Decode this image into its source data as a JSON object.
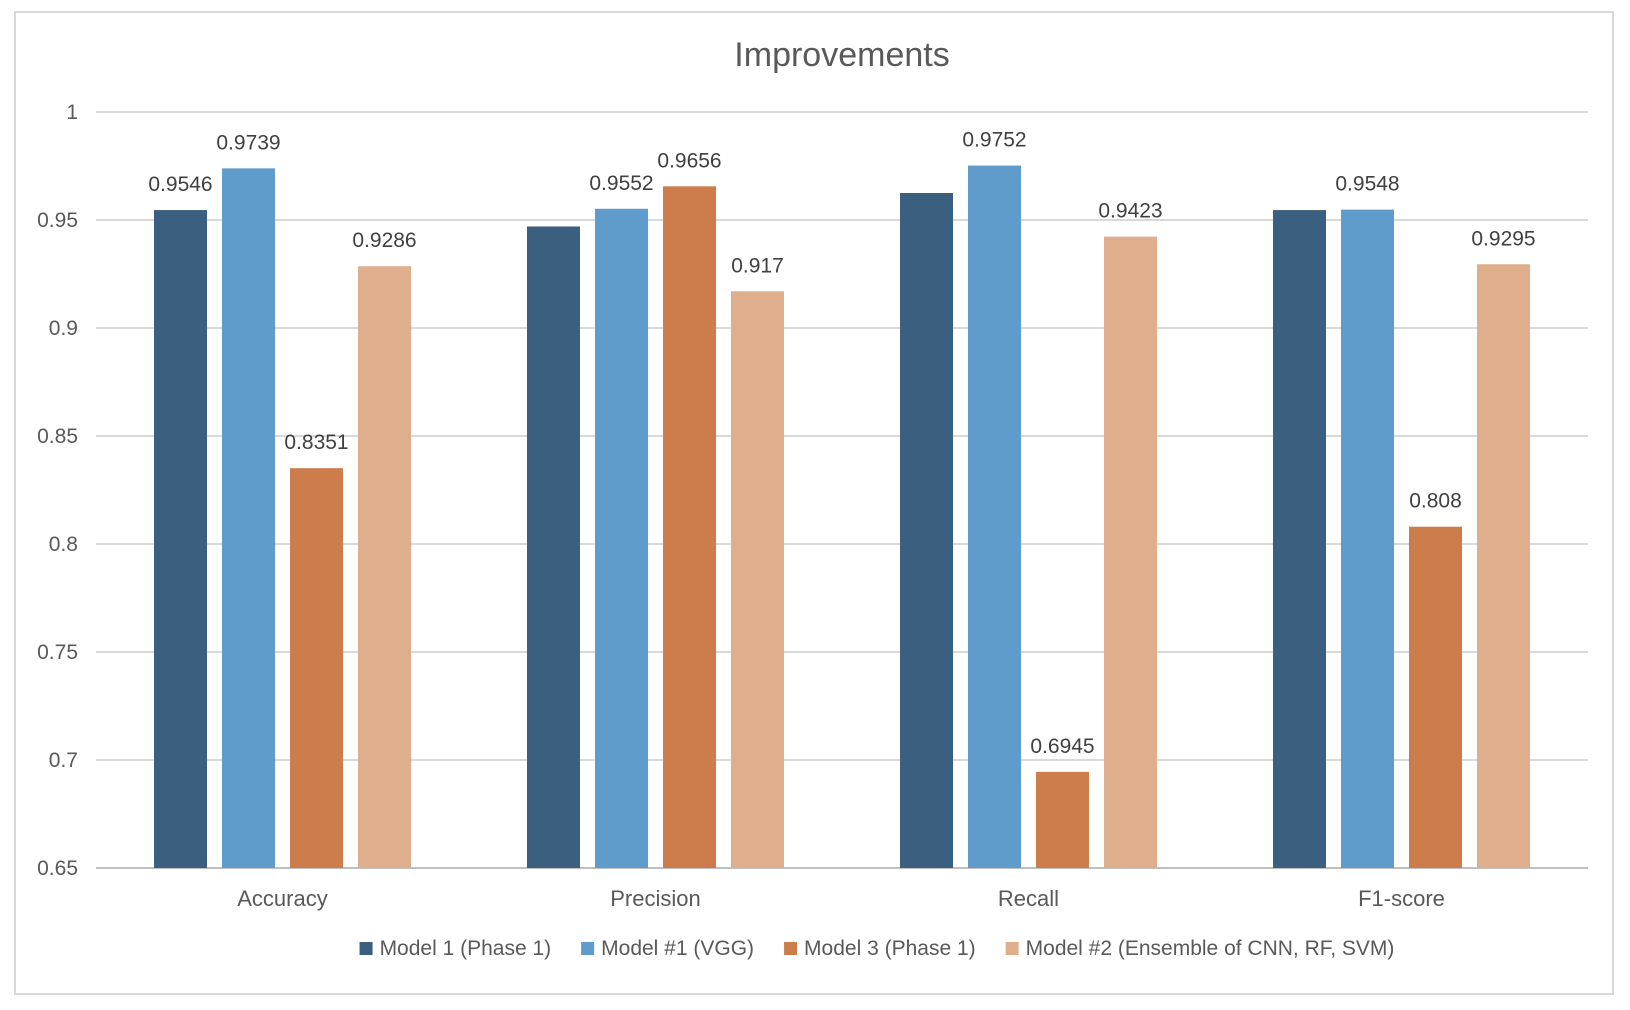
{
  "chart_data": {
    "type": "bar",
    "title": "Improvements",
    "xlabel": "",
    "ylabel": "",
    "ylim": [
      0.65,
      1
    ],
    "y_ticks": [
      "0.65",
      "0.7",
      "0.75",
      "0.8",
      "0.85",
      "0.9",
      "0.95",
      "1"
    ],
    "grid": true,
    "legend_position": "bottom",
    "categories": [
      "Accuracy",
      "Precision",
      "Recall",
      "F1-score"
    ],
    "series": [
      {
        "name": "Model 1 (Phase 1)",
        "color": "#3a5f7f",
        "values": [
          0.9546,
          0.947,
          0.9625,
          0.9546
        ],
        "labels": [
          "0.9546",
          "",
          "",
          ""
        ]
      },
      {
        "name": "Model #1 (VGG)",
        "color": "#5f9bcb",
        "values": [
          0.9739,
          0.9552,
          0.9752,
          0.9548
        ],
        "labels": [
          "0.9739",
          "0.9552",
          "0.9752",
          "0.9548"
        ]
      },
      {
        "name": "Model 3 (Phase 1)",
        "color": "#cd7c4b",
        "values": [
          0.8351,
          0.9656,
          0.6945,
          0.808
        ],
        "labels": [
          "0.8351",
          "0.9656",
          "0.6945",
          "0.808"
        ]
      },
      {
        "name": "Model #2 (Ensemble of CNN, RF, SVM)",
        "color": "#deae8d",
        "values": [
          0.9286,
          0.917,
          0.9423,
          0.9295
        ],
        "labels": [
          "0.9286",
          "0.917",
          "0.9423",
          "0.9295"
        ]
      }
    ]
  }
}
